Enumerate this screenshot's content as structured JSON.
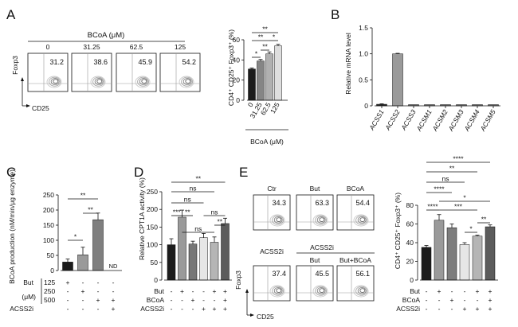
{
  "panel_letters": [
    "A",
    "B",
    "C",
    "D",
    "E"
  ],
  "chart_data": [
    {
      "panel": "A",
      "type": "flow_cytometry_plots",
      "treatment_label": "BCoA (μM)",
      "plots": [
        {
          "condition": "0",
          "percent": "31.2"
        },
        {
          "condition": "31.25",
          "percent": "38.6"
        },
        {
          "condition": "62.5",
          "percent": "45.9"
        },
        {
          "condition": "125",
          "percent": "54.2"
        }
      ],
      "ylabel": "Foxp3",
      "xlabel": "CD25"
    },
    {
      "panel": "A",
      "type": "bar",
      "categories": [
        "0",
        "31.25",
        "62.5",
        "125"
      ],
      "values": [
        31,
        39,
        46,
        54
      ],
      "errors": [
        1,
        1.5,
        2,
        1.5
      ],
      "bar_colors": [
        "#1c1c1c",
        "#858585",
        "#b0b0b0",
        "#dedede"
      ],
      "ylabel": "CD4⁺ CD25⁺ Foxp3⁺ (%)",
      "xlabel": "BCoA (μM)",
      "ylim": [
        0,
        60
      ],
      "yticks": [
        0,
        20,
        40,
        60
      ],
      "significance": [
        "*",
        "**",
        "**",
        "*",
        "**"
      ]
    },
    {
      "panel": "B",
      "type": "bar",
      "categories": [
        "ACSS1",
        "ACSS2",
        "ACSS3",
        "ACSM1",
        "ACSM2",
        "ACSM3",
        "ACSM4",
        "ACSM5"
      ],
      "values": [
        0.03,
        1.0,
        0.003,
        0.002,
        0.002,
        0.004,
        0.004,
        0.004
      ],
      "errors": [
        0.01,
        0.01,
        0,
        0,
        0,
        0,
        0,
        0
      ],
      "bar_colors": [
        "#2a2a2a",
        "#9a9a9a",
        "#777777",
        "#777777",
        "#777777",
        "#777777",
        "#777777",
        "#777777"
      ],
      "ylabel": "Relative mRNA level",
      "ylim": [
        0,
        1.5
      ],
      "yticks": [
        "0",
        "0.5",
        "1.0",
        "1.5"
      ]
    },
    {
      "panel": "C",
      "type": "bar",
      "categories": [
        "1",
        "2",
        "3",
        "4"
      ],
      "values": [
        28,
        52,
        168,
        0
      ],
      "errors": [
        10,
        25,
        22,
        0
      ],
      "bar_colors": [
        "#1c1c1c",
        "#9a9a9a",
        "#7f7f7f",
        "#cccccc"
      ],
      "ylabel": "BCoA production (nM/min/μg enzyme)",
      "ylim": [
        0,
        250
      ],
      "yticks": [
        0,
        50,
        100,
        150,
        200,
        250
      ],
      "nd_label": "ND",
      "significance": [
        "*",
        "**",
        "**"
      ],
      "conditions": {
        "bracket_label": "(μM)",
        "rows": [
          {
            "label": "But",
            "sub": "125",
            "marks": [
              "+",
              "-",
              "-",
              "-"
            ]
          },
          {
            "label": "",
            "sub": "250",
            "marks": [
              "-",
              "+",
              "-",
              "-"
            ]
          },
          {
            "label": "",
            "sub": "500",
            "marks": [
              "-",
              "-",
              "+",
              "+"
            ]
          },
          {
            "label": "ACSS2i",
            "sub": "",
            "marks": [
              "-",
              "-",
              "-",
              "+"
            ]
          }
        ]
      }
    },
    {
      "panel": "D",
      "type": "bar",
      "categories": [
        "1",
        "2",
        "3",
        "4",
        "5",
        "6"
      ],
      "values": [
        100,
        178,
        102,
        120,
        107,
        160
      ],
      "errors": [
        17,
        20,
        8,
        12,
        15,
        15
      ],
      "bar_colors": [
        "#1c1c1c",
        "#9a9a9a",
        "#777777",
        "#e6e6e6",
        "#b5b5b5",
        "#5c5c5c"
      ],
      "ylabel": "Relative CPT1A activity (%)",
      "ylim": [
        0,
        250
      ],
      "yticks": [
        0,
        50,
        100,
        150,
        200,
        250
      ],
      "significance": [
        "***",
        "ns",
        "**",
        "ns",
        "**",
        "ns",
        "ns",
        "**"
      ],
      "conditions": {
        "rows": [
          {
            "label": "But",
            "marks": [
              "-",
              "+",
              "-",
              "-",
              "+",
              "+"
            ]
          },
          {
            "label": "BCoA",
            "marks": [
              "-",
              "-",
              "+",
              "-",
              "-",
              "+"
            ]
          },
          {
            "label": "ACSS2i",
            "marks": [
              "-",
              "-",
              "-",
              "+",
              "+",
              "+"
            ]
          }
        ]
      }
    },
    {
      "panel": "E",
      "type": "flow_cytometry_plots",
      "header_label": "ACSS2i",
      "plots": [
        {
          "condition": "Ctr",
          "percent": "34.3"
        },
        {
          "condition": "But",
          "percent": "63.3"
        },
        {
          "condition": "BCoA",
          "percent": "54.4"
        },
        {
          "condition": "ACSS2i",
          "percent": "37.4"
        },
        {
          "condition": "But",
          "percent": "45.5"
        },
        {
          "condition": "But+BCoA",
          "percent": "56.1"
        }
      ],
      "ylabel": "Foxp3",
      "xlabel": "CD25"
    },
    {
      "panel": "E",
      "type": "bar",
      "categories": [
        "1",
        "2",
        "3",
        "4",
        "5",
        "6"
      ],
      "values": [
        35,
        64,
        56,
        38,
        47,
        57
      ],
      "errors": [
        2,
        6,
        4,
        2,
        1,
        2
      ],
      "bar_colors": [
        "#1c1c1c",
        "#9a9a9a",
        "#7d7d7d",
        "#e6e6e6",
        "#b5b5b5",
        "#5c5c5c"
      ],
      "ylabel": "CD4⁺ CD25⁺ Foxp3⁺ (%)",
      "ylim": [
        0,
        80
      ],
      "yticks": [
        0,
        20,
        40,
        60,
        80
      ],
      "significance": [
        "****",
        "**",
        "ns",
        "****",
        "*",
        "****",
        "***",
        "*",
        "**"
      ],
      "conditions": {
        "rows": [
          {
            "label": "But",
            "marks": [
              "-",
              "+",
              "-",
              "-",
              "+",
              "+"
            ]
          },
          {
            "label": "BCoA",
            "marks": [
              "-",
              "-",
              "+",
              "-",
              "-",
              "+"
            ]
          },
          {
            "label": "ACSS2i",
            "marks": [
              "-",
              "-",
              "-",
              "+",
              "+",
              "+"
            ]
          }
        ]
      }
    }
  ]
}
